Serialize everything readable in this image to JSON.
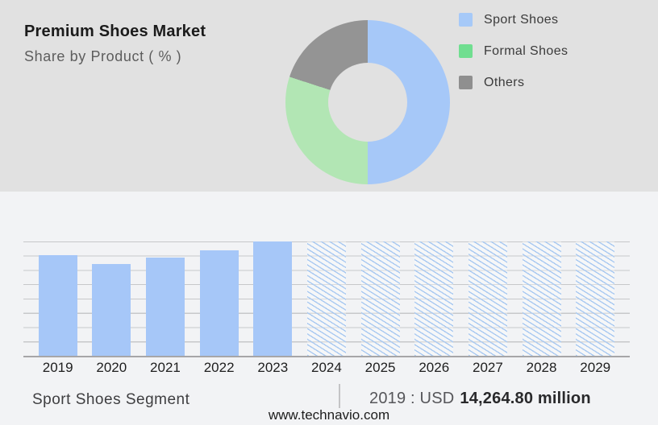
{
  "header": {
    "title": "Premium Shoes Market",
    "subtitle": "Share by Product ( % )"
  },
  "chart_data": [
    {
      "type": "pie",
      "variant": "donut",
      "title": "Premium Shoes Market",
      "subtitle": "Share by Product ( % )",
      "unit": "%",
      "labels": [
        "Sport Shoes",
        "Formal Shoes",
        "Others"
      ],
      "values": [
        50,
        30,
        20
      ],
      "slice_colors": [
        "#A6C8F8",
        "#B2E6B4",
        "#949494"
      ],
      "legend_swatch_colors": [
        "#A6C9F8",
        "#70DE90",
        "#8F8F8F"
      ],
      "legend_position": "right",
      "hole_ratio": 0.48,
      "start_angle_deg": 0,
      "direction": "clockwise"
    },
    {
      "type": "bar",
      "series_name": "Sport Shoes Segment",
      "categories": [
        "2019",
        "2020",
        "2021",
        "2022",
        "2023",
        "2024",
        "2025",
        "2026",
        "2027",
        "2028",
        "2029"
      ],
      "bar_height_pct_of_plot": [
        87.7,
        80.5,
        85.9,
        92.5,
        100,
        100,
        100,
        100,
        100,
        100,
        100
      ],
      "historical_years": [
        "2019",
        "2020",
        "2021",
        "2022",
        "2023"
      ],
      "forecast_years": [
        "2024",
        "2025",
        "2026",
        "2027",
        "2028",
        "2029"
      ],
      "labeled_value": {
        "category": "2019",
        "text": "2019 : USD 14,264.80 million",
        "value_usd_million": 14264.8
      },
      "estimated_values_usd_million": {
        "2019": 14264.8,
        "2020": 13100,
        "2021": 13980,
        "2022": 15050,
        "2023": 16270
      },
      "bar_color": "#A6C7F8",
      "forecast_bar_style": "blue-diagonal-hatch",
      "gridlines": true,
      "gridline_count": 9,
      "y_axis_labels_visible": false
    }
  ],
  "footer": {
    "segment_label": "Sport Shoes Segment",
    "separator": "|",
    "value_prefix": "2019 : USD",
    "value_bold": "14,264.80 million",
    "website": "www.technavio.com"
  },
  "colors": {
    "top_section_bg": "#E1E1E1",
    "bottom_section_bg": "#F2F3F5",
    "gridline": "#C7C8CA",
    "axis_line": "#A6A6A8",
    "bar_blue": "#A6C7F8",
    "hatch_blue": "#A9C9F1"
  }
}
